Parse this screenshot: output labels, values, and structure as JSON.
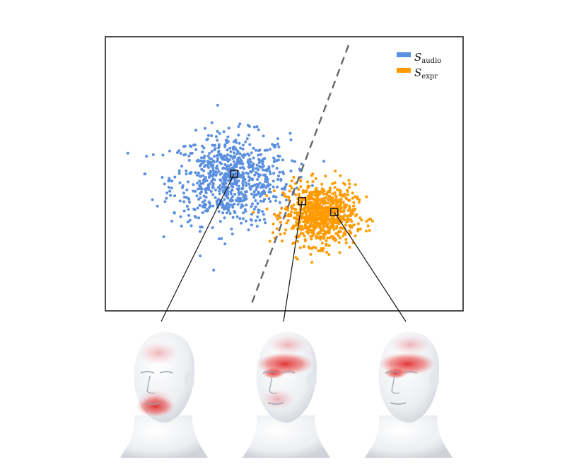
{
  "chart_data": {
    "type": "scatter",
    "title": "",
    "xlabel": "",
    "ylabel": "",
    "xlim": [
      0,
      10
    ],
    "ylim": [
      0,
      10
    ],
    "grid": false,
    "axis_ticks": false,
    "legend_position": "top-right",
    "series": [
      {
        "name": "audio",
        "legend_symbol": "S",
        "legend_subscript": "audio",
        "color": "#5b8fe0",
        "cluster": {
          "center": [
            3.5,
            4.8
          ],
          "spread": [
            1.5,
            1.5
          ],
          "count": 780
        }
      },
      {
        "name": "expr",
        "legend_symbol": "S",
        "legend_subscript": "expr",
        "color": "#ff9a00",
        "cluster": {
          "center": [
            6.0,
            3.5
          ],
          "spread": [
            0.9,
            1.0
          ],
          "count": 800
        }
      }
    ],
    "decision_boundary": {
      "style": "dashed",
      "color": "#666666",
      "from": [
        4.1,
        0.3
      ],
      "to": [
        6.8,
        9.7
      ]
    },
    "highlighted_points": [
      {
        "series": "audio",
        "x": 3.6,
        "y": 5.0,
        "callout": "face-1"
      },
      {
        "series": "boundary",
        "x": 5.5,
        "y": 4.0,
        "callout": "face-2"
      },
      {
        "series": "expr",
        "x": 6.4,
        "y": 3.6,
        "callout": "face-3"
      }
    ]
  },
  "faces": [
    {
      "id": "face-1",
      "activation": "mouth-cheek"
    },
    {
      "id": "face-2",
      "activation": "forehead-eyes-cheek"
    },
    {
      "id": "face-3",
      "activation": "forehead-eyes"
    }
  ],
  "colors": {
    "axes": "#222222",
    "face_base": "#f2f2f2",
    "face_activation": "#e02020"
  }
}
